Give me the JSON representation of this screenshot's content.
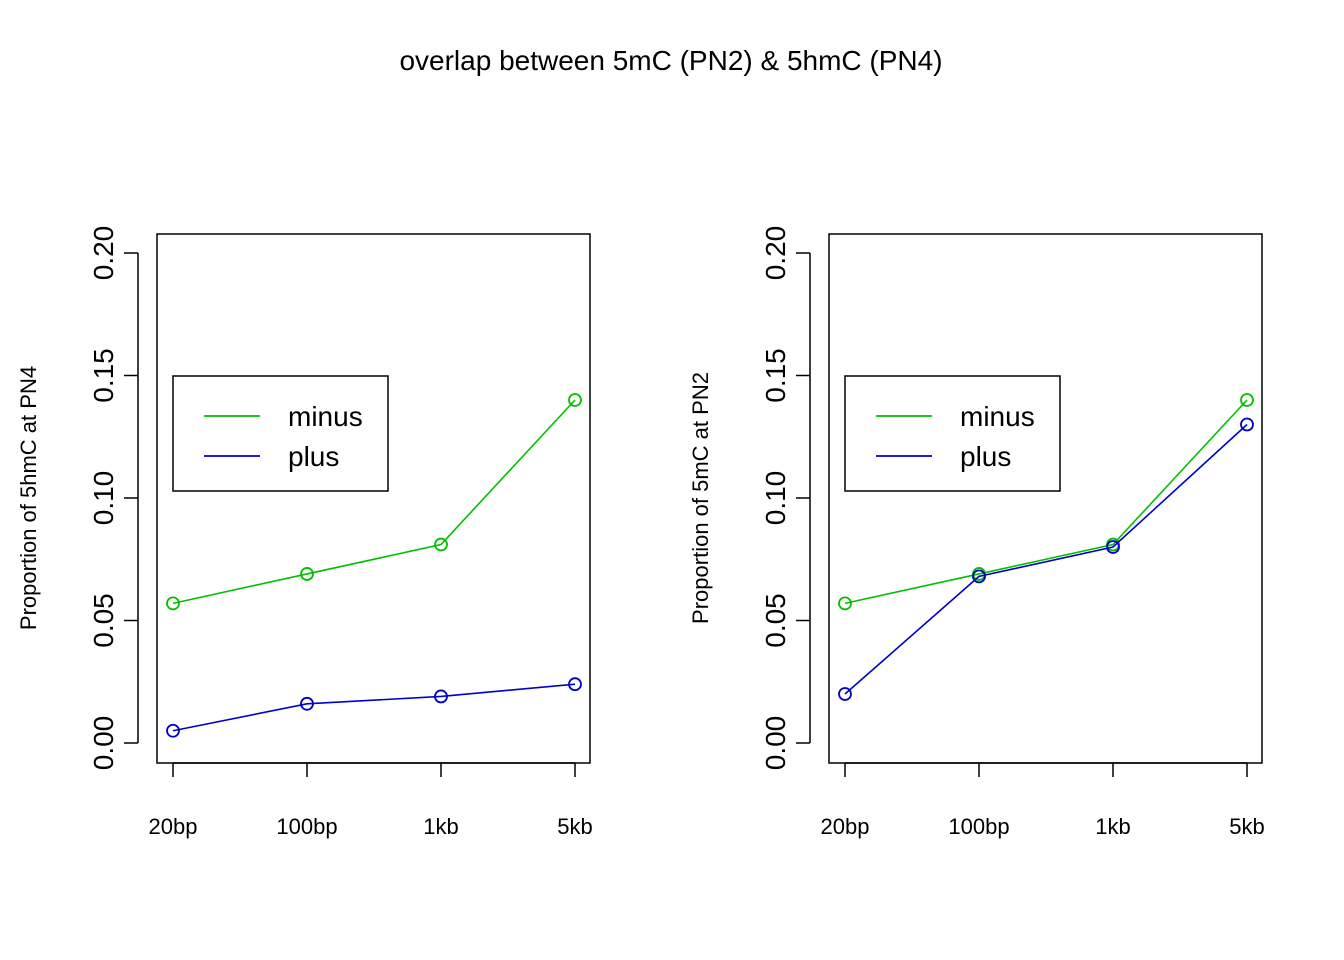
{
  "figure": {
    "title": "overlap between 5mC (PN2) & 5hmC (PN4)"
  },
  "chart_data": [
    {
      "type": "line",
      "title": "",
      "xlabel": "",
      "ylabel": "Proportion of 5hmC at PN4",
      "categories": [
        "20bp",
        "100bp",
        "1kb",
        "5kb"
      ],
      "yticks": [
        "0.00",
        "0.05",
        "0.10",
        "0.15",
        "0.20"
      ],
      "ylim": [
        0,
        0.2
      ],
      "grid": false,
      "legend_position": "middle-left",
      "series": [
        {
          "name": "minus",
          "color": "#00c000",
          "values": [
            0.057,
            0.069,
            0.081,
            0.14
          ]
        },
        {
          "name": "plus",
          "color": "#0000cd",
          "values": [
            0.005,
            0.016,
            0.019,
            0.024
          ]
        }
      ]
    },
    {
      "type": "line",
      "title": "",
      "xlabel": "",
      "ylabel": "Proportion of 5mC at PN2",
      "categories": [
        "20bp",
        "100bp",
        "1kb",
        "5kb"
      ],
      "yticks": [
        "0.00",
        "0.05",
        "0.10",
        "0.15",
        "0.20"
      ],
      "ylim": [
        0,
        0.2
      ],
      "grid": false,
      "legend_position": "middle-left",
      "series": [
        {
          "name": "minus",
          "color": "#00c000",
          "values": [
            0.057,
            0.069,
            0.081,
            0.14
          ]
        },
        {
          "name": "plus",
          "color": "#0000cd",
          "values": [
            0.02,
            0.068,
            0.08,
            0.13
          ]
        }
      ]
    }
  ]
}
